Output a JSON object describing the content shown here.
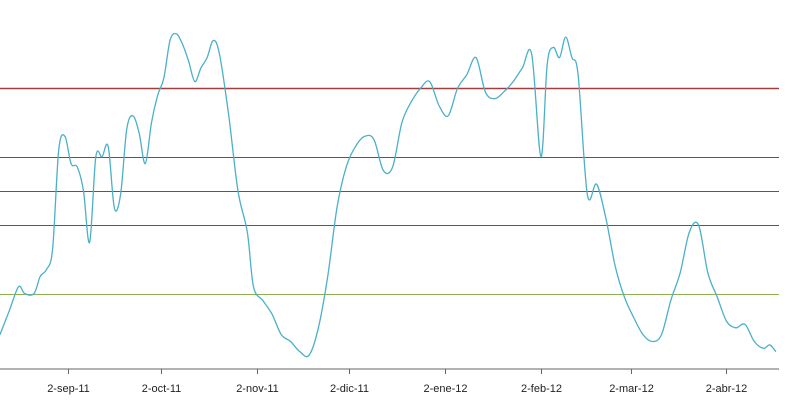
{
  "chart_data": {
    "type": "line",
    "title": "",
    "xlabel": "",
    "ylabel": "",
    "grid": false,
    "legend": "none",
    "xlim": [
      "2011-08-11",
      "2012-04-19"
    ],
    "ylim": [
      0,
      100
    ],
    "x_ticks": [
      {
        "date": "2011-09-02",
        "label": "2-sep-11"
      },
      {
        "date": "2011-10-02",
        "label": "2-oct-11"
      },
      {
        "date": "2011-11-02",
        "label": "2-nov-11"
      },
      {
        "date": "2011-12-02",
        "label": "2-dic-11"
      },
      {
        "date": "2012-01-02",
        "label": "2-ene-12"
      },
      {
        "date": "2012-02-02",
        "label": "2-feb-12"
      },
      {
        "date": "2012-03-02",
        "label": "2-mar-12"
      },
      {
        "date": "2012-04-02",
        "label": "2-abr-12"
      }
    ],
    "reference_lines": [
      {
        "value": 80,
        "color": "#a33c3c"
      },
      {
        "value": 60,
        "color": "#4a5a7a"
      },
      {
        "value": 50,
        "color": "#6a4a7a"
      },
      {
        "value": 40,
        "color": "#4a5a7a"
      },
      {
        "value": 20,
        "color": "#8cb050"
      }
    ],
    "series": [
      {
        "name": "",
        "color": "#4bb0c8",
        "x": [
          "2011-08-11",
          "2011-08-14",
          "2011-08-17",
          "2011-08-19",
          "2011-08-22",
          "2011-08-24",
          "2011-08-26",
          "2011-08-28",
          "2011-08-30",
          "2011-09-01",
          "2011-09-03",
          "2011-09-05",
          "2011-09-07",
          "2011-09-09",
          "2011-09-11",
          "2011-09-13",
          "2011-09-15",
          "2011-09-17",
          "2011-09-19",
          "2011-09-21",
          "2011-09-23",
          "2011-09-25",
          "2011-09-27",
          "2011-09-29",
          "2011-10-01",
          "2011-10-03",
          "2011-10-05",
          "2011-10-07",
          "2011-10-09",
          "2011-10-11",
          "2011-10-13",
          "2011-10-15",
          "2011-10-17",
          "2011-10-19",
          "2011-10-21",
          "2011-10-24",
          "2011-10-27",
          "2011-10-30",
          "2011-11-01",
          "2011-11-04",
          "2011-11-07",
          "2011-11-10",
          "2011-11-13",
          "2011-11-16",
          "2011-11-19",
          "2011-11-22",
          "2011-11-25",
          "2011-11-28",
          "2011-12-01",
          "2011-12-04",
          "2011-12-07",
          "2011-12-10",
          "2011-12-13",
          "2011-12-16",
          "2011-12-19",
          "2011-12-22",
          "2011-12-25",
          "2011-12-28",
          "2011-12-31",
          "2012-01-03",
          "2012-01-06",
          "2012-01-09",
          "2012-01-12",
          "2012-01-15",
          "2012-01-18",
          "2012-01-21",
          "2012-01-24",
          "2012-01-27",
          "2012-01-30",
          "2012-02-02",
          "2012-02-04",
          "2012-02-06",
          "2012-02-08",
          "2012-02-10",
          "2012-02-12",
          "2012-02-14",
          "2012-02-17",
          "2012-02-20",
          "2012-02-23",
          "2012-02-26",
          "2012-02-29",
          "2012-03-03",
          "2012-03-06",
          "2012-03-09",
          "2012-03-12",
          "2012-03-15",
          "2012-03-18",
          "2012-03-21",
          "2012-03-24",
          "2012-03-27",
          "2012-03-30",
          "2012-04-02",
          "2012-04-05",
          "2012-04-08",
          "2012-04-11",
          "2012-04-14",
          "2012-04-16",
          "2012-04-18"
        ],
        "y": [
          8,
          15,
          22,
          20,
          20,
          25,
          27,
          33,
          62,
          66,
          58,
          57,
          50,
          35,
          60,
          60,
          63,
          45,
          49,
          68,
          72,
          67,
          58,
          70,
          78,
          83,
          94,
          96,
          93,
          88,
          82,
          86,
          89,
          94,
          90,
          72,
          50,
          38,
          22,
          18,
          14,
          8,
          6,
          3,
          2,
          10,
          25,
          45,
          57,
          63,
          66,
          65,
          56,
          57,
          70,
          76,
          80,
          82,
          75,
          72,
          80,
          84,
          89,
          79,
          77,
          79,
          82,
          86,
          90,
          60,
          87,
          92,
          89,
          95,
          89,
          84,
          49,
          52,
          42,
          28,
          19,
          13,
          8,
          6,
          8,
          18,
          26,
          38,
          40,
          26,
          19,
          12,
          10,
          11,
          6,
          4,
          5,
          3
        ]
      }
    ]
  }
}
